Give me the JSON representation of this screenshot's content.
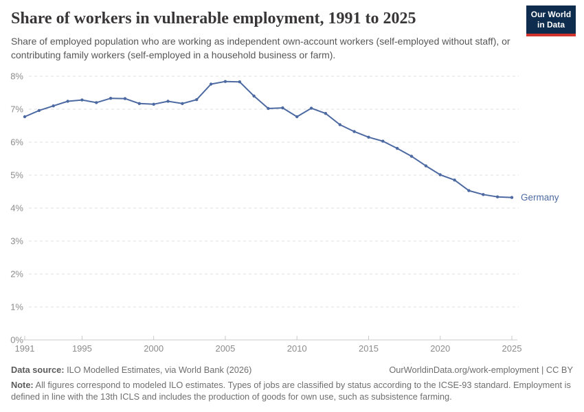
{
  "header": {
    "title": "Share of workers in vulnerable employment, 1991 to 2025",
    "subtitle": "Share of employed population who are working as independent own-account workers (self-employed without staff), or contributing family workers (self-employed in a household business or farm).",
    "logo": {
      "line1": "Our World",
      "line2": "in Data",
      "bg_color": "#0e2d4e",
      "accent_color": "#d0342c"
    }
  },
  "chart_data": {
    "type": "line",
    "title": "Share of workers in vulnerable employment, 1991 to 2025",
    "xlabel": "",
    "ylabel": "",
    "ylim": [
      0,
      8
    ],
    "grid": "horizontal-dashed",
    "legend_position": "end-of-line-label",
    "x": [
      1991,
      1992,
      1993,
      1994,
      1995,
      1996,
      1997,
      1998,
      1999,
      2000,
      2001,
      2002,
      2003,
      2004,
      2005,
      2006,
      2007,
      2008,
      2009,
      2010,
      2011,
      2012,
      2013,
      2014,
      2015,
      2016,
      2017,
      2018,
      2019,
      2020,
      2021,
      2022,
      2023,
      2024,
      2025
    ],
    "series": [
      {
        "name": "Germany",
        "color": "#4c69a2",
        "values": [
          6.77,
          6.96,
          7.1,
          7.24,
          7.28,
          7.2,
          7.33,
          7.32,
          7.17,
          7.15,
          7.24,
          7.17,
          7.29,
          7.76,
          7.84,
          7.83,
          7.4,
          7.02,
          7.04,
          6.77,
          7.03,
          6.87,
          6.53,
          6.32,
          6.15,
          6.03,
          5.81,
          5.57,
          5.28,
          5.01,
          4.85,
          4.53,
          4.41,
          4.34,
          4.32
        ]
      }
    ],
    "y_tick_labels": [
      "0%",
      "1%",
      "2%",
      "3%",
      "4%",
      "5%",
      "6%",
      "7%",
      "8%"
    ],
    "x_tick_years": [
      1991,
      1995,
      2000,
      2005,
      2010,
      2015,
      2020,
      2025
    ],
    "colors": {
      "gridline": "#dcdcdc",
      "axis": "#c8c8c8",
      "tick_label": "#8b8b8b"
    }
  },
  "footer": {
    "datasource_label": "Data source:",
    "datasource_text": " ILO Modelled Estimates, via World Bank (2026)",
    "citation": "OurWorldinData.org/work-employment | CC BY",
    "note_label": "Note:",
    "note_text": " All figures correspond to modeled ILO estimates. Types of jobs are classified by status according to the ICSE-93 standard. Employment is defined in line with the 13th ICLS and includes the production of goods for own use, such as subsistence farming."
  }
}
